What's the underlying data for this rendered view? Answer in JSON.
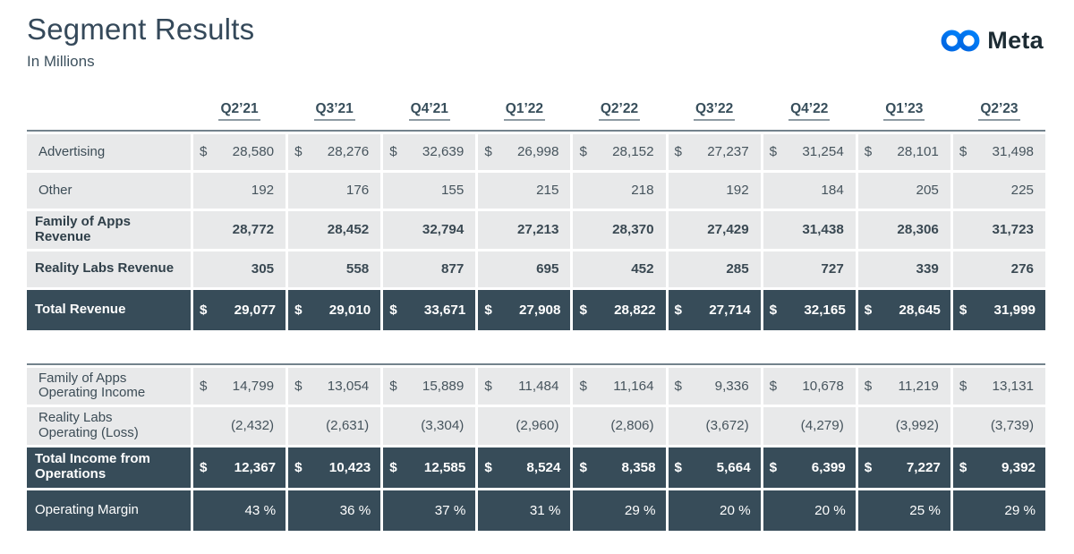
{
  "page": {
    "title": "Segment Results",
    "subtitle": "In Millions"
  },
  "logo": {
    "text": "Meta",
    "icon": "meta-infinity-icon",
    "blue_start": "#0064E0",
    "blue_end": "#0082FB",
    "text_color": "#1C2B33"
  },
  "colors": {
    "slate_text": "#374E5B",
    "light_row_bg": "#E8E9EA",
    "dark_row_bg": "#374C59",
    "table_top_border": "#73828C"
  },
  "columns": [
    "Q2’21",
    "Q3’21",
    "Q4’21",
    "Q1’22",
    "Q2’22",
    "Q3’22",
    "Q4’22",
    "Q1’23",
    "Q2’23"
  ],
  "tables": [
    {
      "name": "revenue-table",
      "rows": [
        {
          "label": "Advertising",
          "dollar": true,
          "bold": false,
          "dark": false,
          "values": [
            "28,580",
            "28,276",
            "32,639",
            "26,998",
            "28,152",
            "27,237",
            "31,254",
            "28,101",
            "31,498"
          ]
        },
        {
          "label": "Other",
          "dollar": false,
          "bold": false,
          "dark": false,
          "values": [
            "192",
            "176",
            "155",
            "215",
            "218",
            "192",
            "184",
            "205",
            "225"
          ]
        },
        {
          "label": "Family of Apps\nRevenue",
          "dollar": false,
          "bold": true,
          "dark": false,
          "values": [
            "28,772",
            "28,452",
            "32,794",
            "27,213",
            "28,370",
            "27,429",
            "31,438",
            "28,306",
            "31,723"
          ]
        },
        {
          "label": "Reality Labs Revenue",
          "dollar": false,
          "bold": true,
          "dark": false,
          "values": [
            "305",
            "558",
            "877",
            "695",
            "452",
            "285",
            "727",
            "339",
            "276"
          ]
        },
        {
          "label": "Total Revenue",
          "dollar": true,
          "bold": true,
          "dark": true,
          "values": [
            "29,077",
            "29,010",
            "33,671",
            "27,908",
            "28,822",
            "27,714",
            "32,165",
            "28,645",
            "31,999"
          ]
        }
      ]
    },
    {
      "name": "operating-table",
      "rows": [
        {
          "label": "Family of Apps\nOperating Income",
          "dollar": true,
          "bold": false,
          "dark": false,
          "values": [
            "14,799",
            "13,054",
            "15,889",
            "11,484",
            "11,164",
            "9,336",
            "10,678",
            "11,219",
            "13,131"
          ]
        },
        {
          "label": "Reality Labs\nOperating (Loss)",
          "dollar": false,
          "bold": false,
          "dark": false,
          "values": [
            "(2,432)",
            "(2,631)",
            "(3,304)",
            "(2,960)",
            "(2,806)",
            "(3,672)",
            "(4,279)",
            "(3,992)",
            "(3,739)"
          ]
        },
        {
          "label": "Total Income from\nOperations",
          "dollar": true,
          "bold": true,
          "dark": true,
          "values": [
            "12,367",
            "10,423",
            "12,585",
            "8,524",
            "8,358",
            "5,664",
            "6,399",
            "7,227",
            "9,392"
          ]
        },
        {
          "label": "Operating Margin",
          "dollar": false,
          "bold": false,
          "dark": true,
          "regular": true,
          "values": [
            "43 %",
            "36 %",
            "37 %",
            "31 %",
            "29 %",
            "20 %",
            "20 %",
            "25 %",
            "29 %"
          ]
        }
      ]
    }
  ],
  "chart_data": {
    "type": "table",
    "title": "Segment Results",
    "units": "USD millions",
    "categories": [
      "Q2'21",
      "Q3'21",
      "Q4'21",
      "Q1'22",
      "Q2'22",
      "Q3'22",
      "Q4'22",
      "Q1'23",
      "Q2'23"
    ],
    "series": [
      {
        "name": "Advertising",
        "values": [
          28580,
          28276,
          32639,
          26998,
          28152,
          27237,
          31254,
          28101,
          31498
        ]
      },
      {
        "name": "Other",
        "values": [
          192,
          176,
          155,
          215,
          218,
          192,
          184,
          205,
          225
        ]
      },
      {
        "name": "Family of Apps Revenue",
        "values": [
          28772,
          28452,
          32794,
          27213,
          28370,
          27429,
          31438,
          28306,
          31723
        ]
      },
      {
        "name": "Reality Labs Revenue",
        "values": [
          305,
          558,
          877,
          695,
          452,
          285,
          727,
          339,
          276
        ]
      },
      {
        "name": "Total Revenue",
        "values": [
          29077,
          29010,
          33671,
          27908,
          28822,
          27714,
          32165,
          28645,
          31999
        ]
      },
      {
        "name": "Family of Apps Operating Income",
        "values": [
          14799,
          13054,
          15889,
          11484,
          11164,
          9336,
          10678,
          11219,
          13131
        ]
      },
      {
        "name": "Reality Labs Operating (Loss)",
        "values": [
          -2432,
          -2631,
          -3304,
          -2960,
          -2806,
          -3672,
          -4279,
          -3992,
          -3739
        ]
      },
      {
        "name": "Total Income from Operations",
        "values": [
          12367,
          10423,
          12585,
          8524,
          8358,
          5664,
          6399,
          7227,
          9392
        ]
      },
      {
        "name": "Operating Margin (%)",
        "values": [
          43,
          36,
          37,
          31,
          29,
          20,
          20,
          25,
          29
        ]
      }
    ]
  }
}
